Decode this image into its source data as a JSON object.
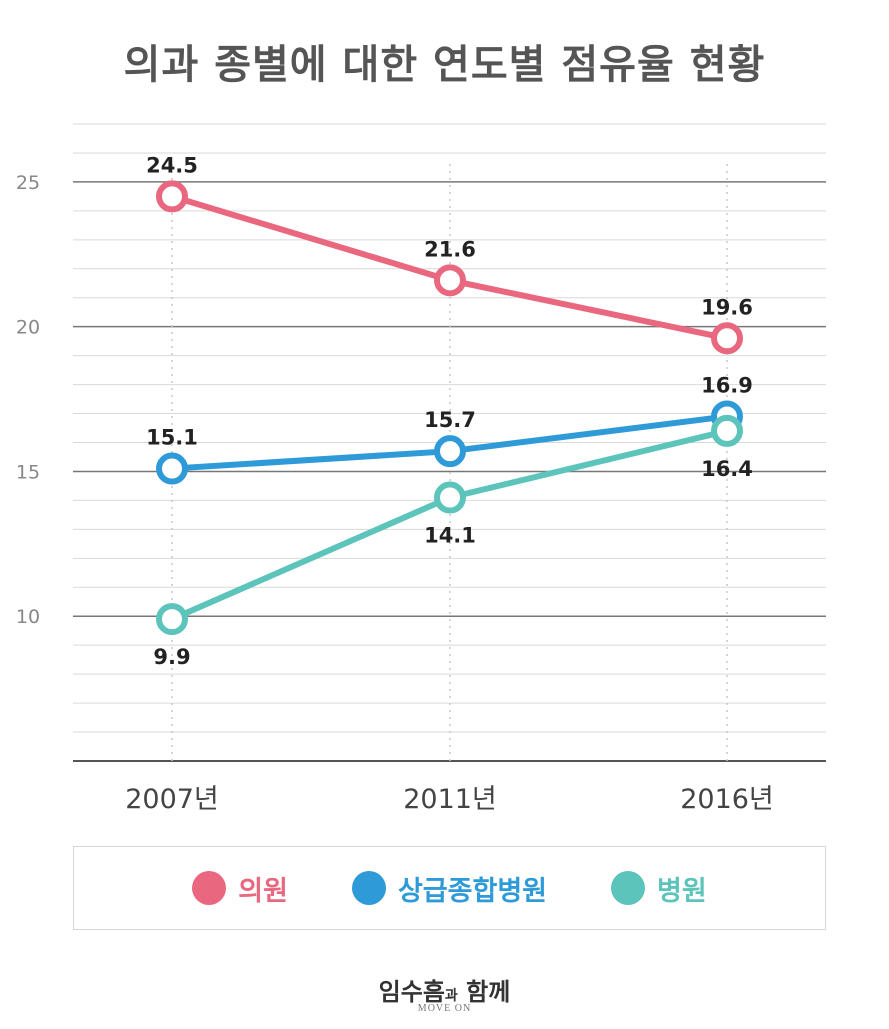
{
  "title": "의과 종별에 대한 연도별 점유율 현황",
  "chart_data": {
    "type": "line",
    "title": "의과 종별에 대한 연도별 점유율 현황",
    "categories": [
      "2007년",
      "2011년",
      "2016년"
    ],
    "y_ticks": [
      "10",
      "15",
      "20",
      "25"
    ],
    "ylim": [
      5,
      27
    ],
    "grid": true,
    "legend_position": "bottom",
    "series": [
      {
        "name": "의원",
        "color": "#e9677f",
        "values": [
          24.5,
          21.6,
          19.6
        ],
        "labels": [
          "24.5",
          "21.6",
          "19.6"
        ],
        "label_pos": [
          "above",
          "above",
          "above"
        ]
      },
      {
        "name": "상급종합병원",
        "color": "#2f9ad8",
        "values": [
          15.1,
          15.7,
          16.9
        ],
        "labels": [
          "15.1",
          "15.7",
          "16.9"
        ],
        "label_pos": [
          "above",
          "above",
          "above"
        ]
      },
      {
        "name": "병원",
        "color": "#5cc4ba",
        "values": [
          9.9,
          14.1,
          16.4
        ],
        "labels": [
          "9.9",
          "14.1",
          "16.4"
        ],
        "label_pos": [
          "below",
          "below",
          "below"
        ]
      }
    ]
  },
  "legend": [
    {
      "label": "의원",
      "color": "#e9677f"
    },
    {
      "label": "상급종합병원",
      "color": "#2f9ad8"
    },
    {
      "label": "병원",
      "color": "#5cc4ba"
    }
  ],
  "footer": {
    "main": "임수흠",
    "small": "과",
    "main2": "함께",
    "sub": "MOVE ON"
  }
}
